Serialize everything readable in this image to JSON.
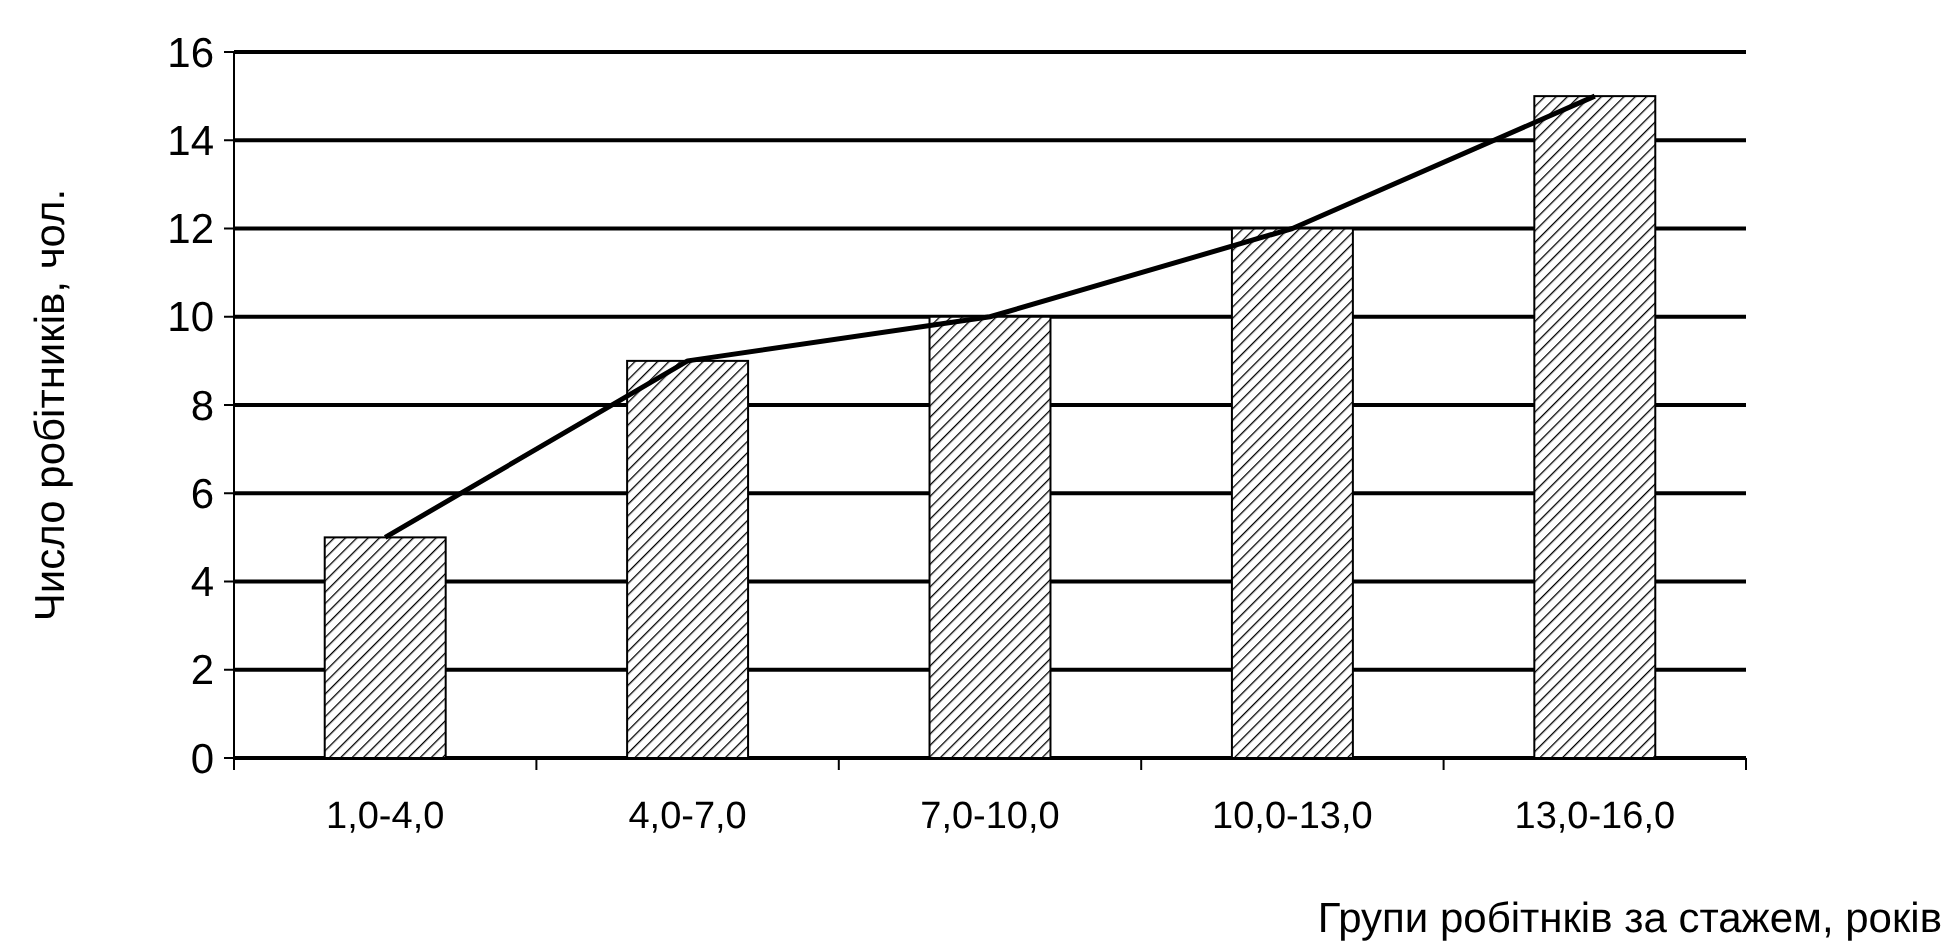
{
  "chart_data": {
    "type": "bar",
    "xlabel": "Групи робітнків за стажем, років",
    "ylabel": "Число робітників, чол.",
    "categories": [
      "1,0-4,0",
      "4,0-7,0",
      "7,0-10,0",
      "10,0-13,0",
      "13,0-16,0"
    ],
    "series": [
      {
        "color": "#000000",
        "values": [
          5,
          9,
          10,
          12,
          15
        ]
      },
      {
        "type": "line",
        "color": "#000000",
        "values": [
          5,
          9,
          10,
          12,
          15
        ]
      }
    ],
    "ylim": [
      0,
      16
    ],
    "yticks": [
      0,
      2,
      4,
      6,
      8,
      10,
      12,
      14,
      16
    ],
    "grid": "y",
    "marker": "none",
    "line_style": "solid"
  }
}
